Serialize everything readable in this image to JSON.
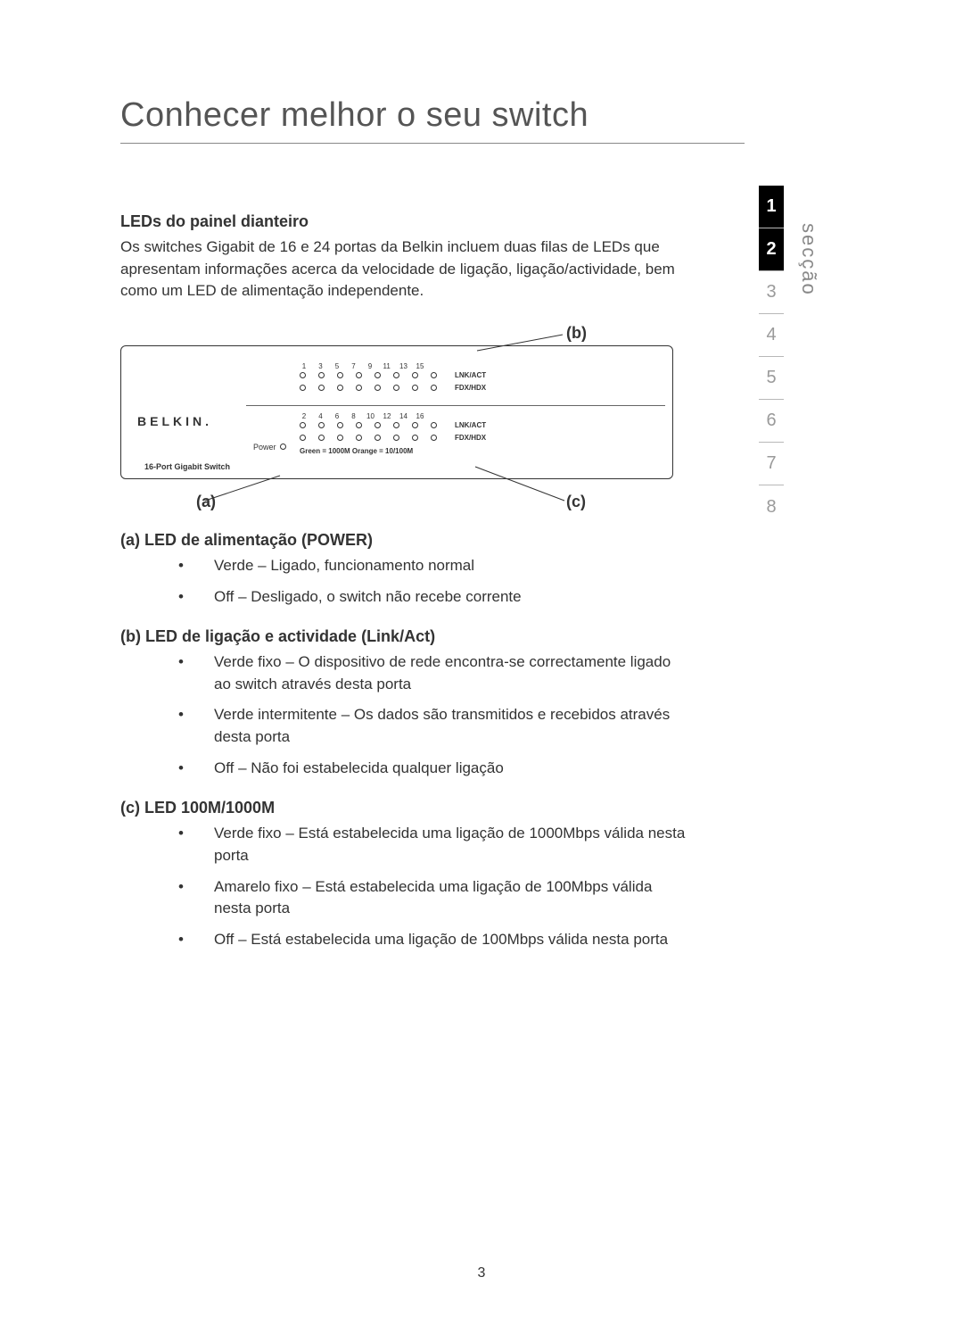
{
  "page": {
    "title": "Conhecer melhor o seu switch",
    "number": "3"
  },
  "sidebar": {
    "label": "secção",
    "items": [
      "1",
      "2",
      "3",
      "4",
      "5",
      "6",
      "7",
      "8"
    ],
    "active_index": 1,
    "black_indices": [
      0,
      1
    ]
  },
  "intro": {
    "heading": "LEDs do painel dianteiro",
    "paragraph": "Os switches Gigabit de 16 e 24 portas da Belkin incluem duas filas de LEDs que apresentam informações acerca da velocidade de ligação, ligação/actividade, bem como um LED de alimentação independente."
  },
  "diagram": {
    "callouts": {
      "a": "(a)",
      "b": "(b)",
      "c": "(c)"
    },
    "brand": "BELKIN.",
    "panel_label": "16-Port Gigabit Switch",
    "power_label": "Power",
    "odd_numbers": [
      "1",
      "3",
      "5",
      "7",
      "9",
      "11",
      "13",
      "15"
    ],
    "even_numbers": [
      "2",
      "4",
      "6",
      "8",
      "10",
      "12",
      "14",
      "16"
    ],
    "row_labels": {
      "lnkact": "LNK/ACT",
      "fdxhdx": "FDX/HDX"
    },
    "legend": "Green = 1000M  Orange = 10/100M",
    "colors": {
      "border": "#333333",
      "text": "#333333"
    }
  },
  "sections": [
    {
      "heading": "(a) LED de alimentação (POWER)",
      "items": [
        "Verde – Ligado, funcionamento normal",
        "Off – Desligado, o switch não recebe corrente"
      ]
    },
    {
      "heading": "(b) LED de ligação e actividade (Link/Act)",
      "items": [
        "Verde fixo – O dispositivo de rede encontra-se correctamente ligado ao switch através desta porta",
        "Verde intermitente – Os dados são transmitidos e recebidos através desta porta",
        "Off – Não foi estabelecida qualquer ligação"
      ]
    },
    {
      "heading": "(c) LED 100M/1000M",
      "items": [
        "Verde fixo – Está estabelecida uma ligação de 1000Mbps válida nesta porta",
        "Amarelo fixo – Está estabelecida uma ligação de 100Mbps válida nesta porta",
        "Off – Está estabelecida uma ligação de 100Mbps válida nesta porta"
      ]
    }
  ]
}
